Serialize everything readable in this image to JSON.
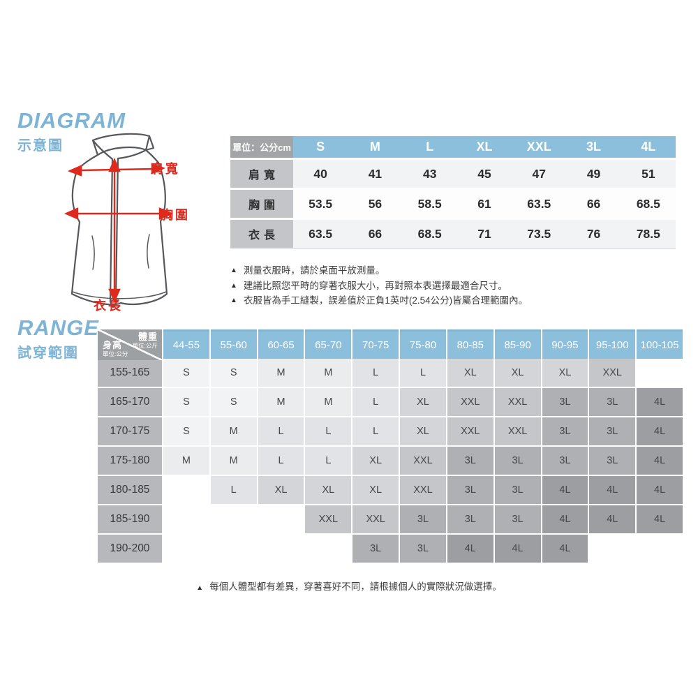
{
  "diagram": {
    "title": "DIAGRAM",
    "subtitle": "示意圖",
    "vest_labels": {
      "shoulder": "肩寬",
      "chest": "胸圍",
      "length": "衣長"
    },
    "size_table": {
      "unit_label": "單位：公分cm",
      "columns": [
        "S",
        "M",
        "L",
        "XL",
        "XXL",
        "3L",
        "4L"
      ],
      "rows": [
        {
          "label": "肩寬",
          "values": [
            "40",
            "41",
            "43",
            "45",
            "47",
            "49",
            "51"
          ]
        },
        {
          "label": "胸圍",
          "values": [
            "53.5",
            "56",
            "58.5",
            "61",
            "63.5",
            "66",
            "68.5"
          ]
        },
        {
          "label": "衣長",
          "values": [
            "63.5",
            "66",
            "68.5",
            "71",
            "73.5",
            "76",
            "78.5"
          ]
        }
      ]
    },
    "notes": [
      "測量衣服時，請於桌面平放測量。",
      "建議比照您平時的穿著衣服大小，再對照本表選擇最適合尺寸。",
      "衣服皆為手工縫製，誤差值於正負1英吋(2.54公分)皆屬合理範圍內。"
    ]
  },
  "range": {
    "title": "RANGE",
    "subtitle": "試穿範圍",
    "corner": {
      "weight_label": "體重",
      "weight_unit": "單位:公斤",
      "height_label": "身高",
      "height_unit": "單位:公分"
    },
    "weight_columns": [
      "44-55",
      "55-60",
      "60-65",
      "65-70",
      "70-75",
      "75-80",
      "80-85",
      "85-90",
      "90-95",
      "95-100",
      "100-105"
    ],
    "rows": [
      {
        "height": "155-165",
        "sizes": [
          "S",
          "S",
          "M",
          "M",
          "L",
          "L",
          "XL",
          "XL",
          "XL",
          "XXL",
          ""
        ]
      },
      {
        "height": "165-170",
        "sizes": [
          "S",
          "S",
          "M",
          "M",
          "L",
          "XL",
          "XXL",
          "XXL",
          "3L",
          "3L",
          "4L"
        ]
      },
      {
        "height": "170-175",
        "sizes": [
          "S",
          "M",
          "L",
          "L",
          "L",
          "XL",
          "XXL",
          "XXL",
          "3L",
          "3L",
          "4L"
        ]
      },
      {
        "height": "175-180",
        "sizes": [
          "M",
          "M",
          "L",
          "L",
          "XL",
          "XXL",
          "3L",
          "3L",
          "3L",
          "3L",
          "4L"
        ]
      },
      {
        "height": "180-185",
        "sizes": [
          "",
          "L",
          "XL",
          "XL",
          "XL",
          "XXL",
          "3L",
          "3L",
          "4L",
          "4L",
          "4L"
        ]
      },
      {
        "height": "185-190",
        "sizes": [
          "",
          "",
          "",
          "XXL",
          "XXL",
          "3L",
          "3L",
          "3L",
          "4L",
          "4L",
          "4L"
        ]
      },
      {
        "height": "190-200",
        "sizes": [
          "",
          "",
          "",
          "",
          "3L",
          "3L",
          "4L",
          "4L",
          "4L",
          "",
          ""
        ]
      }
    ],
    "note": "每個人體型都有差異，穿著喜好不同，請根據個人的實際狀況做選擇。"
  },
  "icons": {
    "bullet": "▲"
  },
  "colors": {
    "accent_blue": "#8cbfdc",
    "title_blue": "#7db4d6",
    "red": "#df291d",
    "unit_cell_gray": "#a2a4a7",
    "table_label_gray": "#c3c5c8",
    "corner_gray": "#9da0a3",
    "row_label_gray": "#b6b8bb",
    "size_shades": {
      "S": "#f1f3f5",
      "M": "#eaecee",
      "L": "#e1e3e6",
      "XL": "#d3d5d8",
      "XXL": "#c4c6c9",
      "3L": "#aeb0b3",
      "4L": "#9c9ea1"
    }
  }
}
